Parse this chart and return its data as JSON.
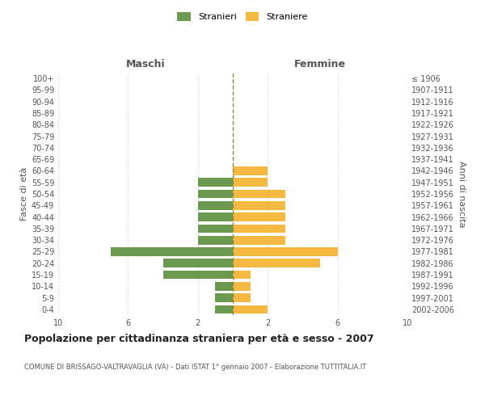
{
  "age_groups": [
    "0-4",
    "5-9",
    "10-14",
    "15-19",
    "20-24",
    "25-29",
    "30-34",
    "35-39",
    "40-44",
    "45-49",
    "50-54",
    "55-59",
    "60-64",
    "65-69",
    "70-74",
    "75-79",
    "80-84",
    "85-89",
    "90-94",
    "95-99",
    "100+"
  ],
  "birth_years": [
    "2002-2006",
    "1997-2001",
    "1992-1996",
    "1987-1991",
    "1982-1986",
    "1977-1981",
    "1972-1976",
    "1967-1971",
    "1962-1966",
    "1957-1961",
    "1952-1956",
    "1947-1951",
    "1942-1946",
    "1937-1941",
    "1932-1936",
    "1927-1931",
    "1922-1926",
    "1917-1921",
    "1912-1916",
    "1907-1911",
    "≤ 1906"
  ],
  "males": [
    1,
    1,
    1,
    4,
    4,
    7,
    2,
    2,
    2,
    2,
    2,
    2,
    0,
    0,
    0,
    0,
    0,
    0,
    0,
    0,
    0
  ],
  "females": [
    2,
    1,
    1,
    1,
    5,
    6,
    3,
    3,
    3,
    3,
    3,
    2,
    2,
    0,
    0,
    0,
    0,
    0,
    0,
    0,
    0
  ],
  "male_color": "#6a9a50",
  "female_color": "#f5b942",
  "title": "Popolazione per cittadinanza straniera per età e sesso - 2007",
  "subtitle": "COMUNE DI BRISSAGO-VALTRAVAGLIA (VA) - Dati ISTAT 1° gennaio 2007 - Elaborazione TUTTITALIA.IT",
  "ylabel_left": "Fasce di età",
  "ylabel_right": "Anni di nascita",
  "xlabel_left": "Maschi",
  "xlabel_right": "Femmine",
  "legend_male": "Stranieri",
  "legend_female": "Straniere",
  "xlim": 10,
  "background_color": "#ffffff",
  "grid_color": "#d0d0d0"
}
